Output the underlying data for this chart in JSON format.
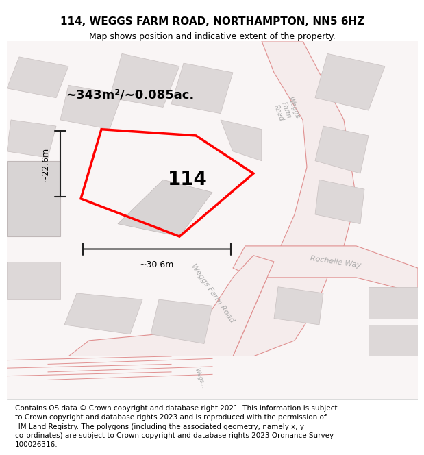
{
  "title": "114, WEGGS FARM ROAD, NORTHAMPTON, NN5 6HZ",
  "subtitle": "Map shows position and indicative extent of the property.",
  "footer": "Contains OS data © Crown copyright and database right 2021. This information is subject\nto Crown copyright and database rights 2023 and is reproduced with the permission of\nHM Land Registry. The polygons (including the associated geometry, namely x, y\nco-ordinates) are subject to Crown copyright and database rights 2023 Ordnance Survey\n100026316.",
  "area_text": "~343m²/~0.085ac.",
  "label_114": "114",
  "dim_v": "~22.6m",
  "dim_h": "~30.6m",
  "bg_color": "#f5f0f0",
  "map_bg": "#f8f4f4",
  "road_color_major": "#e8c8c8",
  "road_outline": "#e09090",
  "building_fill": "#d8d0d0",
  "building_edge": "#c0b8b8",
  "property_color": "#ff0000",
  "dim_color": "#222222",
  "road_label_color": "#999999",
  "title_fontsize": 11,
  "subtitle_fontsize": 9,
  "footer_fontsize": 7.5
}
